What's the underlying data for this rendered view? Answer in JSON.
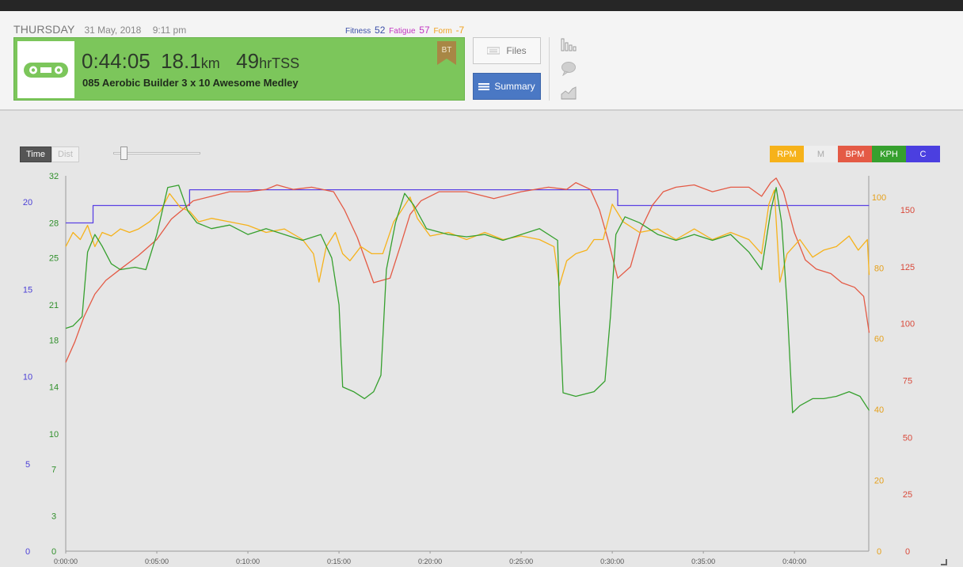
{
  "header": {
    "day": "THURSDAY",
    "date": "31 May, 2018",
    "time": "9:11 pm",
    "fitness_label": "Fitness",
    "fitness_value": "52",
    "fatigue_label": "Fatigue",
    "fatigue_value": "57",
    "form_label": "Form",
    "form_value": "-7"
  },
  "workout": {
    "duration": "0:44:05",
    "distance": "18.1",
    "distance_unit": "km",
    "tss": "49",
    "tss_unit": "hrTSS",
    "title": "085 Aerobic Builder 3 x 10 Awesome Medley",
    "badge": "BT",
    "icon": "bike-chain-icon"
  },
  "buttons": {
    "files": "Files",
    "summary": "Summary"
  },
  "controls": {
    "time": "Time",
    "dist": "Dist"
  },
  "legend": [
    "RPM",
    "M",
    "BPM",
    "KPH",
    "C"
  ],
  "colors": {
    "rpm": "#f6b21a",
    "bpm": "#e45a45",
    "kph": "#36a02e",
    "cadence_target": "#5b42e3",
    "header_green": "#7cc65b",
    "summary_blue": "#4a78c4"
  },
  "chart_data": {
    "type": "line",
    "x_ticks": [
      "0:00:00",
      "0:05:00",
      "0:10:00",
      "0:15:00",
      "0:20:00",
      "0:25:00",
      "0:30:00",
      "0:35:00",
      "0:40:00"
    ],
    "x_max_min": 44.08,
    "axes": {
      "c": {
        "ticks": [
          "20",
          "15",
          "10",
          "5",
          "0"
        ],
        "values": [
          20,
          15,
          10,
          5,
          0
        ],
        "max": 21.5
      },
      "kph": {
        "ticks": [
          "32",
          "28",
          "25",
          "21",
          "18",
          "14",
          "10",
          "7",
          "3",
          "0"
        ],
        "values": [
          32,
          28,
          25,
          21,
          18,
          14,
          10,
          7,
          3,
          0
        ],
        "max": 32
      },
      "rpm": {
        "ticks": [
          "100",
          "80",
          "60",
          "40",
          "20",
          "0"
        ],
        "values": [
          100,
          80,
          60,
          40,
          20,
          0
        ],
        "max": 106
      },
      "bpm": {
        "ticks": [
          "150",
          "125",
          "100",
          "75",
          "50",
          "25",
          "0"
        ],
        "values": [
          150,
          125,
          100,
          75,
          50,
          25,
          0
        ],
        "max": 165
      }
    },
    "series": [
      {
        "name": "C",
        "axis": "c",
        "points": [
          [
            0,
            18.8
          ],
          [
            1.5,
            18.8
          ],
          [
            1.5,
            19.8
          ],
          [
            6.8,
            19.8
          ],
          [
            6.8,
            20.7
          ],
          [
            30.3,
            20.7
          ],
          [
            30.3,
            19.8
          ],
          [
            44.1,
            19.8
          ]
        ]
      },
      {
        "name": "BPM",
        "axis": "bpm",
        "points": [
          [
            0,
            83
          ],
          [
            0.5,
            92
          ],
          [
            1,
            103
          ],
          [
            1.6,
            113
          ],
          [
            2.2,
            119
          ],
          [
            3,
            124
          ],
          [
            4,
            130
          ],
          [
            5,
            137
          ],
          [
            5.8,
            146
          ],
          [
            6.4,
            150
          ],
          [
            7,
            154
          ],
          [
            8,
            156
          ],
          [
            9,
            158
          ],
          [
            10,
            158
          ],
          [
            11,
            159
          ],
          [
            11.6,
            161
          ],
          [
            12.5,
            159
          ],
          [
            13.5,
            160
          ],
          [
            14.7,
            158
          ],
          [
            15.3,
            150
          ],
          [
            16,
            138
          ],
          [
            16.9,
            118
          ],
          [
            17.8,
            120
          ],
          [
            18.4,
            135
          ],
          [
            18.9,
            148
          ],
          [
            19.5,
            154
          ],
          [
            20.5,
            158
          ],
          [
            22,
            158
          ],
          [
            23.5,
            155
          ],
          [
            25,
            158
          ],
          [
            26.5,
            160
          ],
          [
            27.5,
            159
          ],
          [
            28,
            162
          ],
          [
            28.8,
            159
          ],
          [
            29.3,
            150
          ],
          [
            29.8,
            136
          ],
          [
            30.3,
            120
          ],
          [
            31,
            125
          ],
          [
            31.6,
            142
          ],
          [
            32.2,
            152
          ],
          [
            32.8,
            158
          ],
          [
            33.5,
            160
          ],
          [
            34.5,
            161
          ],
          [
            35.5,
            158
          ],
          [
            36.5,
            160
          ],
          [
            37.5,
            160
          ],
          [
            38.2,
            156
          ],
          [
            38.7,
            162
          ],
          [
            39,
            164
          ],
          [
            39.4,
            158
          ],
          [
            40,
            140
          ],
          [
            40.6,
            128
          ],
          [
            41.2,
            124
          ],
          [
            42,
            122
          ],
          [
            42.6,
            118
          ],
          [
            43.3,
            116
          ],
          [
            43.8,
            112
          ],
          [
            44.1,
            96
          ]
        ]
      },
      {
        "name": "RPM",
        "axis": "rpm",
        "points": [
          [
            0,
            86
          ],
          [
            0.4,
            90
          ],
          [
            0.8,
            88
          ],
          [
            1.2,
            92
          ],
          [
            1.6,
            86
          ],
          [
            2,
            90
          ],
          [
            2.5,
            89
          ],
          [
            3,
            91
          ],
          [
            3.5,
            90
          ],
          [
            4,
            91
          ],
          [
            4.6,
            93
          ],
          [
            5.2,
            96
          ],
          [
            5.7,
            101
          ],
          [
            6.3,
            97
          ],
          [
            6.8,
            96
          ],
          [
            7.3,
            93
          ],
          [
            8,
            94
          ],
          [
            9,
            93
          ],
          [
            10,
            92
          ],
          [
            11,
            90
          ],
          [
            12,
            91
          ],
          [
            13,
            88
          ],
          [
            13.6,
            84
          ],
          [
            13.9,
            76
          ],
          [
            14.3,
            86
          ],
          [
            14.8,
            90
          ],
          [
            15.2,
            84
          ],
          [
            15.6,
            82
          ],
          [
            16.2,
            86
          ],
          [
            16.8,
            84
          ],
          [
            17.4,
            84
          ],
          [
            18,
            93
          ],
          [
            18.4,
            96
          ],
          [
            18.9,
            100
          ],
          [
            19.3,
            94
          ],
          [
            20,
            89
          ],
          [
            21,
            90
          ],
          [
            22,
            88
          ],
          [
            23,
            90
          ],
          [
            24,
            88
          ],
          [
            25,
            89
          ],
          [
            26,
            88
          ],
          [
            26.8,
            86
          ],
          [
            27.1,
            75
          ],
          [
            27.5,
            82
          ],
          [
            28,
            84
          ],
          [
            28.6,
            85
          ],
          [
            29,
            88
          ],
          [
            29.5,
            88
          ],
          [
            30,
            98
          ],
          [
            30.6,
            93
          ],
          [
            31.5,
            90
          ],
          [
            32.5,
            91
          ],
          [
            33.5,
            88
          ],
          [
            34.5,
            91
          ],
          [
            35.5,
            88
          ],
          [
            36.5,
            90
          ],
          [
            37.5,
            88
          ],
          [
            38.2,
            84
          ],
          [
            38.6,
            98
          ],
          [
            38.9,
            102
          ],
          [
            39.2,
            76
          ],
          [
            39.6,
            84
          ],
          [
            40.3,
            88
          ],
          [
            41,
            83
          ],
          [
            41.6,
            85
          ],
          [
            42.3,
            86
          ],
          [
            43,
            89
          ],
          [
            43.5,
            85
          ],
          [
            44,
            88
          ],
          [
            44.1,
            78
          ]
        ]
      },
      {
        "name": "KPH",
        "axis": "kph",
        "points": [
          [
            0,
            19
          ],
          [
            0.4,
            19.2
          ],
          [
            0.9,
            20
          ],
          [
            1.2,
            25.5
          ],
          [
            1.6,
            27
          ],
          [
            2,
            26
          ],
          [
            2.5,
            24.5
          ],
          [
            3,
            24
          ],
          [
            3.8,
            24.2
          ],
          [
            4.4,
            24
          ],
          [
            5,
            27
          ],
          [
            5.6,
            31
          ],
          [
            6.2,
            31.2
          ],
          [
            6.7,
            29
          ],
          [
            7.2,
            28
          ],
          [
            8,
            27.5
          ],
          [
            9,
            27.8
          ],
          [
            10,
            27
          ],
          [
            11,
            27.5
          ],
          [
            12,
            27
          ],
          [
            13,
            26.5
          ],
          [
            14,
            27
          ],
          [
            14.6,
            25
          ],
          [
            15,
            21
          ],
          [
            15.2,
            14
          ],
          [
            15.8,
            13.6
          ],
          [
            16.4,
            13
          ],
          [
            16.9,
            13.6
          ],
          [
            17.3,
            15
          ],
          [
            17.6,
            24
          ],
          [
            18.1,
            28
          ],
          [
            18.6,
            30.5
          ],
          [
            19.1,
            29.5
          ],
          [
            19.8,
            27.5
          ],
          [
            21,
            27
          ],
          [
            22,
            26.8
          ],
          [
            23,
            27
          ],
          [
            24,
            26.5
          ],
          [
            25,
            27
          ],
          [
            26,
            27.5
          ],
          [
            27,
            26.5
          ],
          [
            27.1,
            21
          ],
          [
            27.3,
            13.5
          ],
          [
            28,
            13.2
          ],
          [
            29,
            13.6
          ],
          [
            29.6,
            14.5
          ],
          [
            29.9,
            20
          ],
          [
            30.2,
            27
          ],
          [
            30.7,
            28.5
          ],
          [
            31.5,
            28
          ],
          [
            32.5,
            27
          ],
          [
            33.5,
            26.5
          ],
          [
            34.5,
            27
          ],
          [
            35.5,
            26.5
          ],
          [
            36.5,
            27
          ],
          [
            37.5,
            25.5
          ],
          [
            38.2,
            24
          ],
          [
            38.7,
            29
          ],
          [
            39,
            31
          ],
          [
            39.3,
            28
          ],
          [
            39.6,
            21
          ],
          [
            39.9,
            11.8
          ],
          [
            40.3,
            12.4
          ],
          [
            41,
            13
          ],
          [
            41.6,
            13
          ],
          [
            42.3,
            13.2
          ],
          [
            43,
            13.6
          ],
          [
            43.6,
            13.2
          ],
          [
            44.1,
            12
          ]
        ]
      }
    ]
  }
}
